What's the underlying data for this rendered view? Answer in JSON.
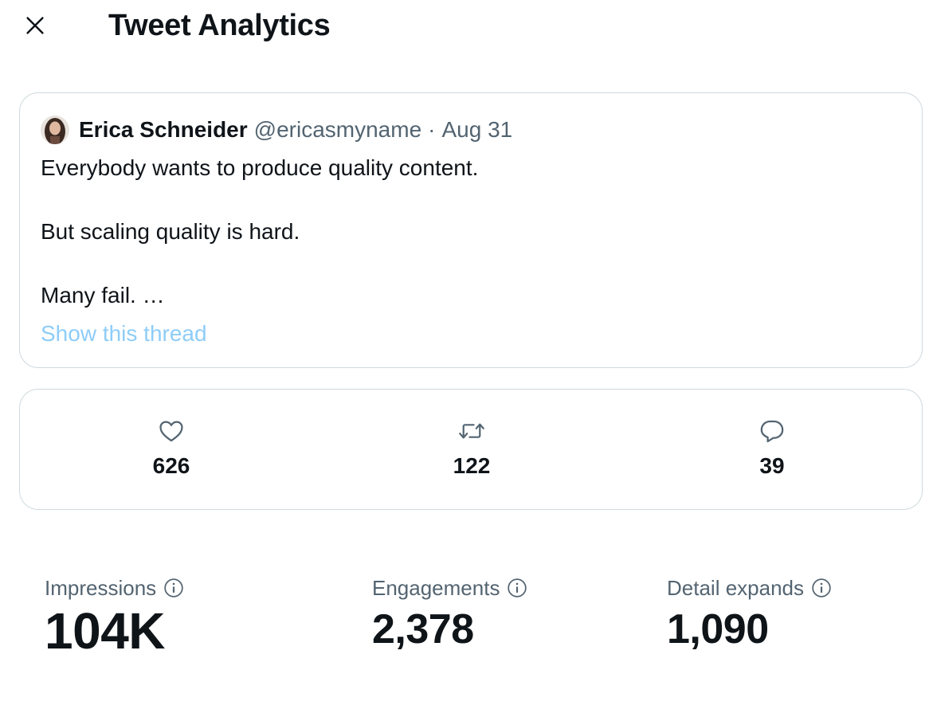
{
  "header": {
    "title": "Tweet Analytics"
  },
  "tweet": {
    "author_name": "Erica Schneider",
    "author_handle": "@ericasmyname",
    "separator": "·",
    "date": "Aug 31",
    "lines": [
      "Everybody wants to produce quality content.",
      "But scaling quality is hard.",
      "Many fail. …"
    ],
    "show_thread_label": "Show this thread",
    "link_color": "#8ecdf8"
  },
  "engagement_stats": {
    "likes": {
      "icon": "heart-icon",
      "value": "626"
    },
    "retweets": {
      "icon": "retweet-icon",
      "value": "122"
    },
    "replies": {
      "icon": "reply-icon",
      "value": "39"
    }
  },
  "metrics": [
    {
      "label": "Impressions",
      "value": "104K",
      "icon": "info-icon"
    },
    {
      "label": "Engagements",
      "value": "2,378",
      "icon": "info-icon"
    },
    {
      "label": "Detail expands",
      "value": "1,090",
      "icon": "info-icon"
    }
  ],
  "colors": {
    "text_primary": "#0f1419",
    "text_secondary": "#536471",
    "border": "#cfd9de"
  }
}
